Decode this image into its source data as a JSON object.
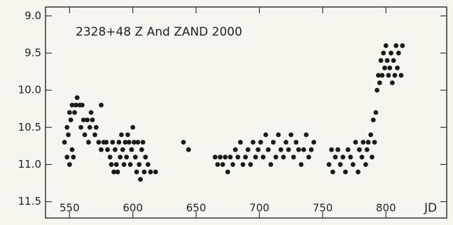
{
  "chart_data": {
    "type": "scatter",
    "title": "2328+48  Z And  ZAND  2000",
    "x_label": "JD",
    "color": "#1a1a1a",
    "xlim": [
      531,
      848
    ],
    "ylim": [
      11.72,
      8.88
    ],
    "xticks": [
      550,
      600,
      650,
      700,
      750,
      800
    ],
    "yticks": [
      {
        "value": 9.0,
        "label": "9.0"
      },
      9.5,
      {
        "value": 10.0,
        "label": "10.0"
      },
      10.5,
      {
        "value": 11.0,
        "label": "11.0"
      },
      11.5
    ],
    "x": [
      546,
      548,
      548,
      549,
      550,
      550,
      551,
      552,
      552,
      553,
      554,
      555,
      556,
      558,
      559,
      560,
      561,
      562,
      564,
      565,
      566,
      567,
      568,
      570,
      571,
      573,
      575,
      575,
      577,
      579,
      580,
      582,
      583,
      584,
      585,
      586,
      587,
      588,
      589,
      590,
      591,
      592,
      593,
      594,
      595,
      596,
      597,
      598,
      599,
      600,
      601,
      602,
      603,
      604,
      605,
      606,
      607,
      608,
      609,
      610,
      612,
      614,
      618,
      640,
      644,
      665,
      667,
      669,
      671,
      673,
      675,
      677,
      679,
      681,
      683,
      685,
      687,
      689,
      691,
      693,
      695,
      697,
      699,
      701,
      703,
      705,
      707,
      709,
      711,
      713,
      715,
      717,
      719,
      721,
      723,
      725,
      727,
      729,
      731,
      733,
      735,
      737,
      739,
      741,
      743,
      755,
      757,
      758,
      760,
      762,
      764,
      766,
      768,
      770,
      772,
      774,
      776,
      778,
      779,
      781,
      782,
      784,
      785,
      786,
      788,
      789,
      790,
      791,
      792,
      793,
      794,
      795,
      796,
      797,
      798,
      799,
      800,
      801,
      802,
      803,
      804,
      805,
      806,
      807,
      808,
      809,
      810,
      812,
      813
    ],
    "values": [
      10.7,
      10.5,
      10.9,
      10.6,
      10.3,
      11.0,
      10.4,
      10.2,
      10.8,
      10.9,
      10.3,
      10.2,
      10.1,
      10.2,
      10.5,
      10.2,
      10.4,
      10.6,
      10.4,
      10.7,
      10.5,
      10.3,
      10.4,
      10.6,
      10.5,
      10.7,
      10.2,
      10.8,
      10.7,
      10.7,
      10.8,
      10.9,
      11.0,
      10.7,
      11.1,
      10.8,
      11.0,
      11.1,
      10.7,
      10.9,
      10.6,
      10.8,
      11.0,
      10.7,
      10.9,
      10.6,
      10.7,
      11.0,
      10.8,
      10.5,
      10.7,
      10.9,
      11.1,
      10.7,
      11.0,
      11.2,
      10.8,
      10.7,
      11.1,
      10.9,
      11.0,
      11.1,
      11.1,
      10.7,
      10.8,
      10.9,
      11.0,
      10.9,
      11.0,
      10.9,
      11.1,
      10.9,
      11.0,
      10.8,
      10.9,
      10.7,
      11.0,
      10.9,
      10.8,
      11.0,
      10.7,
      10.9,
      10.8,
      10.7,
      10.9,
      10.6,
      10.8,
      11.0,
      10.7,
      10.9,
      10.6,
      10.8,
      10.9,
      10.7,
      10.8,
      10.6,
      10.9,
      10.7,
      10.8,
      11.0,
      10.8,
      10.6,
      10.9,
      10.8,
      10.7,
      11.0,
      10.8,
      11.1,
      10.9,
      10.8,
      11.0,
      10.9,
      11.1,
      10.8,
      10.9,
      11.0,
      10.7,
      11.1,
      10.8,
      10.9,
      10.7,
      11.0,
      10.8,
      10.7,
      10.6,
      10.9,
      10.4,
      10.7,
      10.3,
      10.0,
      9.8,
      9.9,
      9.6,
      9.8,
      9.5,
      9.7,
      9.4,
      9.6,
      9.8,
      9.7,
      9.5,
      9.9,
      9.6,
      9.8,
      9.4,
      9.7,
      9.5,
      9.8,
      9.4
    ]
  }
}
